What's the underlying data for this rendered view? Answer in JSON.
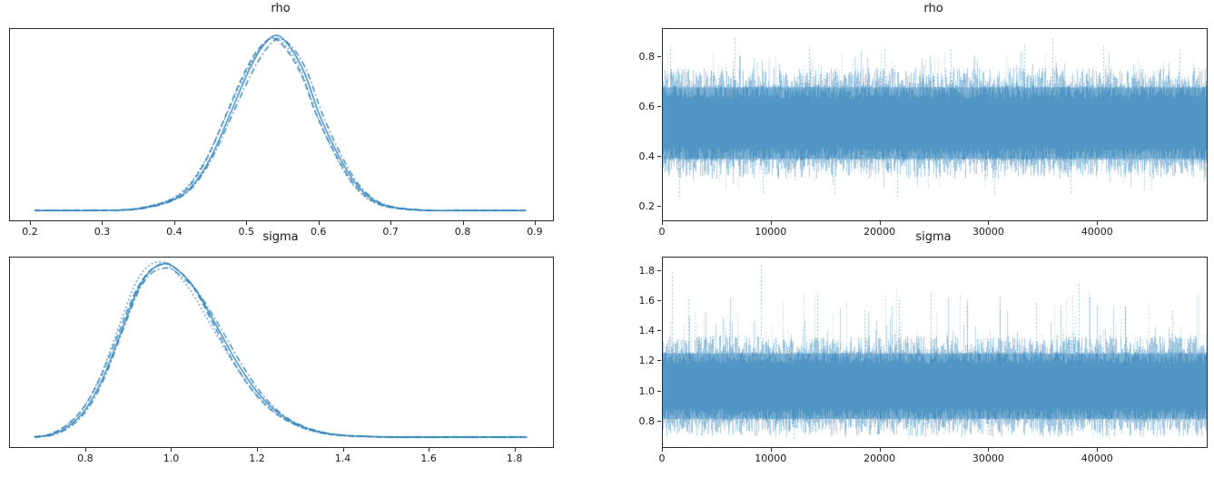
{
  "figure": {
    "background": "#ffffff",
    "frame_color": "#2b2b2b",
    "text_color": "#1a1a1a",
    "accent_line_color": "#1f77b4",
    "trace_core_color": "#4a8fc2",
    "trace_fringe_color": "#a5c9e1"
  },
  "chart_data": [
    {
      "id": "rho-density",
      "type": "line",
      "subtype": "posterior-kde",
      "title": "rho",
      "xlabel": "",
      "ylabel": "",
      "legend": "none",
      "grid": false,
      "yaxis": "hidden",
      "x_tick_labels": [
        "0.2",
        "0.3",
        "0.4",
        "0.5",
        "0.6",
        "0.7",
        "0.8",
        "0.9"
      ],
      "x_tick_values": [
        0.2,
        0.3,
        0.4,
        0.5,
        0.6,
        0.7,
        0.8,
        0.9
      ],
      "xlim": [
        0.171,
        0.924
      ],
      "x_data_range": [
        0.205,
        0.89
      ],
      "n_chains": 4,
      "chain_line_styles": [
        "solid",
        "dashed",
        "dashdot",
        "dotted"
      ],
      "color": "#1f77b4",
      "peak_x": 0.54,
      "curve": {
        "x": [
          0.205,
          0.25,
          0.3,
          0.35,
          0.4,
          0.425,
          0.45,
          0.475,
          0.5,
          0.52,
          0.54,
          0.56,
          0.58,
          0.6,
          0.625,
          0.65,
          0.675,
          0.7,
          0.75,
          0.8,
          0.85,
          0.89
        ],
        "y_normalized": [
          0.004,
          0.004,
          0.006,
          0.015,
          0.07,
          0.15,
          0.31,
          0.54,
          0.78,
          0.93,
          1.0,
          0.93,
          0.78,
          0.55,
          0.33,
          0.16,
          0.065,
          0.025,
          0.005,
          0.004,
          0.004,
          0.004
        ]
      }
    },
    {
      "id": "rho-trace",
      "type": "line",
      "subtype": "mcmc-trace",
      "title": "rho",
      "xlabel": "",
      "ylabel": "",
      "legend": "none",
      "grid": false,
      "x_tick_labels": [
        "0",
        "10000",
        "20000",
        "30000",
        "40000"
      ],
      "x_tick_values": [
        0,
        10000,
        20000,
        30000,
        40000
      ],
      "y_tick_labels": [
        "0.2",
        "0.4",
        "0.6",
        "0.8"
      ],
      "y_tick_values": [
        0.2,
        0.4,
        0.6,
        0.8
      ],
      "xlim": [
        0,
        49999
      ],
      "ylim": [
        0.145,
        0.913
      ],
      "n_samples": 50000,
      "mean": 0.535,
      "core_band": [
        0.355,
        0.715
      ],
      "observed_min": 0.22,
      "observed_max": 0.88,
      "color": "#1f77b4",
      "alpha": 0.4,
      "notable_spikes": [
        {
          "x": 700,
          "y": 0.855
        },
        {
          "x": 6600,
          "y": 0.88
        },
        {
          "x": 13400,
          "y": 0.845
        },
        {
          "x": 20400,
          "y": 0.84
        },
        {
          "x": 26500,
          "y": 0.83
        },
        {
          "x": 33200,
          "y": 0.855
        },
        {
          "x": 35800,
          "y": 0.875
        },
        {
          "x": 40500,
          "y": 0.845
        },
        {
          "x": 47500,
          "y": 0.83
        }
      ],
      "notable_dips": [
        {
          "x": 1500,
          "y": 0.235
        },
        {
          "x": 9200,
          "y": 0.25
        },
        {
          "x": 15800,
          "y": 0.25
        },
        {
          "x": 21500,
          "y": 0.23
        },
        {
          "x": 30500,
          "y": 0.245
        },
        {
          "x": 37500,
          "y": 0.25
        },
        {
          "x": 44200,
          "y": 0.26
        }
      ]
    },
    {
      "id": "sigma-density",
      "type": "line",
      "subtype": "posterior-kde",
      "title": "sigma",
      "xlabel": "",
      "ylabel": "",
      "legend": "none",
      "grid": false,
      "yaxis": "hidden",
      "x_tick_labels": [
        "0.8",
        "1.0",
        "1.2",
        "1.4",
        "1.6",
        "1.8"
      ],
      "x_tick_values": [
        0.8,
        1.0,
        1.2,
        1.4,
        1.6,
        1.8
      ],
      "xlim": [
        0.6225,
        1.8875
      ],
      "x_data_range": [
        0.68,
        1.83
      ],
      "n_chains": 4,
      "chain_line_styles": [
        "solid",
        "dashed",
        "dashdot",
        "dotted"
      ],
      "color": "#1f77b4",
      "peak_x": 0.98,
      "curve": {
        "x": [
          0.68,
          0.72,
          0.76,
          0.8,
          0.84,
          0.88,
          0.92,
          0.95,
          0.98,
          1.0,
          1.05,
          1.1,
          1.15,
          1.2,
          1.25,
          1.3,
          1.35,
          1.4,
          1.5,
          1.6,
          1.7,
          1.83
        ],
        "y_normalized": [
          0.005,
          0.02,
          0.07,
          0.17,
          0.35,
          0.6,
          0.85,
          0.96,
          1.0,
          0.99,
          0.87,
          0.66,
          0.44,
          0.26,
          0.14,
          0.07,
          0.032,
          0.015,
          0.006,
          0.005,
          0.005,
          0.005
        ]
      }
    },
    {
      "id": "sigma-trace",
      "type": "line",
      "subtype": "mcmc-trace",
      "title": "sigma",
      "xlabel": "",
      "ylabel": "",
      "legend": "none",
      "grid": false,
      "x_tick_labels": [
        "0",
        "10000",
        "20000",
        "30000",
        "40000"
      ],
      "x_tick_values": [
        0,
        10000,
        20000,
        30000,
        40000
      ],
      "y_tick_labels": [
        "0.8",
        "1.0",
        "1.2",
        "1.4",
        "1.6",
        "1.8"
      ],
      "y_tick_values": [
        0.8,
        1.0,
        1.2,
        1.4,
        1.6,
        1.8
      ],
      "xlim": [
        0,
        49999
      ],
      "ylim": [
        0.63,
        1.89
      ],
      "n_samples": 50000,
      "mean": 1.035,
      "core_band": [
        0.775,
        1.32
      ],
      "observed_min": 0.65,
      "observed_max": 1.84,
      "color": "#1f77b4",
      "alpha": 0.4,
      "notable_spikes": [
        {
          "x": 800,
          "y": 1.79
        },
        {
          "x": 2300,
          "y": 1.63
        },
        {
          "x": 9000,
          "y": 1.84
        },
        {
          "x": 14200,
          "y": 1.66
        },
        {
          "x": 18500,
          "y": 1.55
        },
        {
          "x": 21700,
          "y": 1.61
        },
        {
          "x": 24600,
          "y": 1.66
        },
        {
          "x": 28000,
          "y": 1.57
        },
        {
          "x": 31000,
          "y": 1.55
        },
        {
          "x": 34300,
          "y": 1.6
        },
        {
          "x": 38200,
          "y": 1.73
        },
        {
          "x": 42500,
          "y": 1.57
        },
        {
          "x": 46800,
          "y": 1.55
        }
      ],
      "notable_dips": [
        {
          "x": 3500,
          "y": 0.7
        },
        {
          "x": 12000,
          "y": 0.68
        },
        {
          "x": 22500,
          "y": 0.67
        },
        {
          "x": 30000,
          "y": 0.7
        },
        {
          "x": 41000,
          "y": 0.69
        }
      ]
    }
  ]
}
